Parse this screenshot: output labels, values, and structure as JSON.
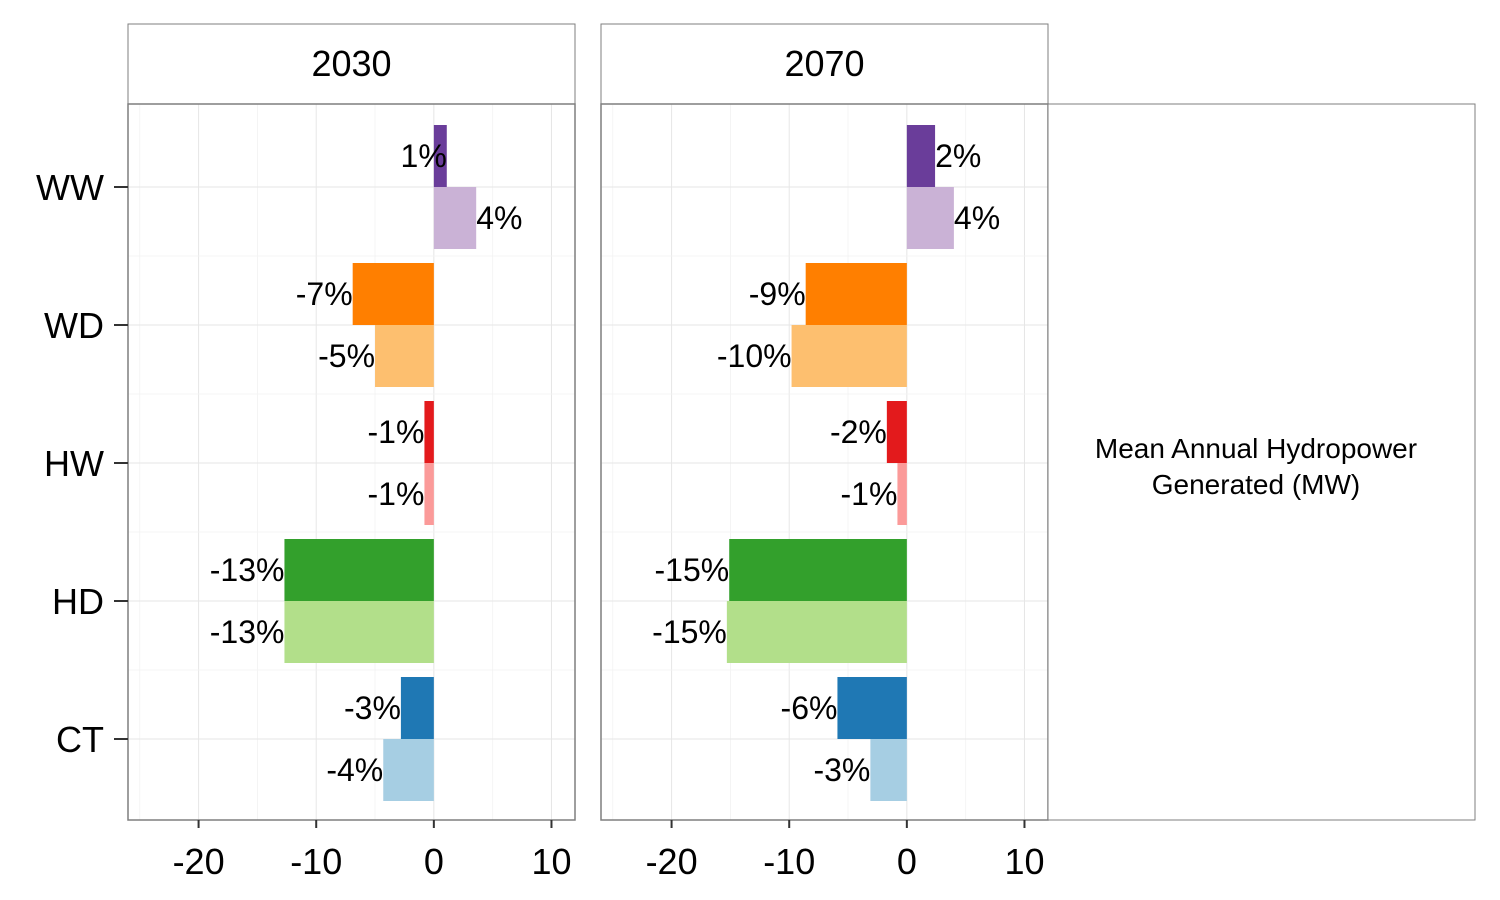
{
  "chart_data": {
    "type": "bar",
    "orientation": "horizontal",
    "facets": [
      "2030",
      "2070"
    ],
    "categories": [
      "WW",
      "WD",
      "HW",
      "HD",
      "CT"
    ],
    "xlim": [
      -26,
      12
    ],
    "xticks": [
      -20,
      -10,
      0,
      10
    ],
    "grid": true,
    "side_label": [
      "Mean Annual Hydropower",
      "Generated (MW)"
    ],
    "colors": {
      "WW": [
        "#6a3d9a",
        "#cab2d6"
      ],
      "WD": [
        "#ff7f00",
        "#fdbf6f"
      ],
      "HW": [
        "#e31a1c",
        "#fb9a99"
      ],
      "HD": [
        "#33a02c",
        "#b2df8a"
      ],
      "CT": [
        "#1f78b4",
        "#a6cee3"
      ]
    },
    "panels": [
      {
        "facet": "2030",
        "bars": [
          {
            "category": "WW",
            "values": [
              1.1,
              3.6
            ],
            "labels": [
              "1%",
              "4%"
            ]
          },
          {
            "category": "WD",
            "values": [
              -6.9,
              -5.0
            ],
            "labels": [
              "-7%",
              "-5%"
            ]
          },
          {
            "category": "HW",
            "values": [
              -0.8,
              -0.8
            ],
            "labels": [
              "-1%",
              "-1%"
            ]
          },
          {
            "category": "HD",
            "values": [
              -12.7,
              -12.7
            ],
            "labels": [
              "-13%",
              "-13%"
            ]
          },
          {
            "category": "CT",
            "values": [
              -2.8,
              -4.3
            ],
            "labels": [
              "-3%",
              "-4%"
            ]
          }
        ]
      },
      {
        "facet": "2070",
        "bars": [
          {
            "category": "WW",
            "values": [
              2.4,
              4.0
            ],
            "labels": [
              "2%",
              "4%"
            ]
          },
          {
            "category": "WD",
            "values": [
              -8.6,
              -9.8
            ],
            "labels": [
              "-9%",
              "-10%"
            ]
          },
          {
            "category": "HW",
            "values": [
              -1.7,
              -0.8
            ],
            "labels": [
              "-2%",
              "-1%"
            ]
          },
          {
            "category": "HD",
            "values": [
              -15.1,
              -15.3
            ],
            "labels": [
              "-15%",
              "-15%"
            ]
          },
          {
            "category": "CT",
            "values": [
              -5.9,
              -3.1
            ],
            "labels": [
              "-6%",
              "-3%"
            ]
          }
        ]
      }
    ]
  }
}
